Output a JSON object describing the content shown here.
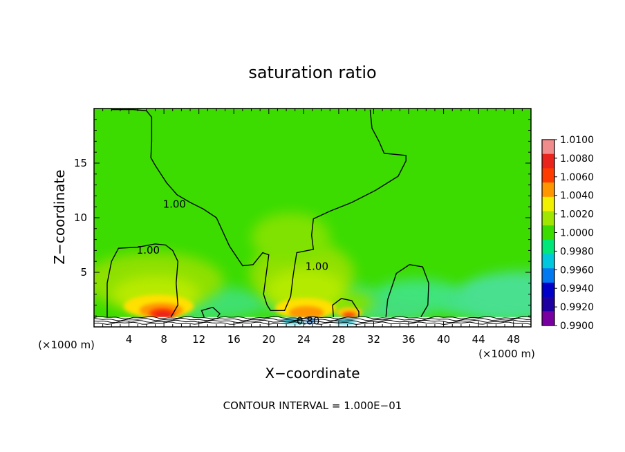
{
  "chart_data": {
    "type": "heatmap",
    "title": "saturation ratio",
    "xlabel": "X−coordinate",
    "ylabel": "Z−coordinate",
    "x_unit_left": "(×1000 m)",
    "x_unit_right": "(×1000 m)",
    "xlim": [
      0,
      50
    ],
    "ylim": [
      0,
      20
    ],
    "x_ticks": [
      4,
      8,
      12,
      16,
      20,
      24,
      28,
      32,
      36,
      40,
      44,
      48
    ],
    "x_tick_labels": [
      "4",
      "8",
      "12",
      "16",
      "20",
      "24",
      "28",
      "32",
      "36",
      "40",
      "44",
      "48"
    ],
    "y_ticks": [
      5,
      10,
      15
    ],
    "y_tick_labels": [
      "5",
      "10",
      "15"
    ],
    "footer": "CONTOUR INTERVAL = 1.000E−01",
    "colorbar": {
      "labels": [
        "1.0100",
        "1.0080",
        "1.0060",
        "1.0040",
        "1.0020",
        "1.0000",
        "0.9980",
        "0.9960",
        "0.9940",
        "0.9920",
        "0.9900"
      ],
      "colors": [
        "#f08c8c",
        "#e8241c",
        "#ff3c00",
        "#ff9600",
        "#f0f000",
        "#a0e600",
        "#3cdc00",
        "#00e678",
        "#00c8dc",
        "#0078f0",
        "#0000c8",
        "#1e00a0",
        "#7800a0"
      ]
    },
    "contour_labels": [
      {
        "text": "1.00",
        "x": 6.2,
        "z": 7.0
      },
      {
        "text": "1.00",
        "x": 9.2,
        "z": 11.2
      },
      {
        "text": "1.00",
        "x": 25.5,
        "z": 5.5
      },
      {
        "text": "0.80",
        "x": 24.5,
        "z": 0.5
      }
    ],
    "contours": [
      {
        "name": "1.00-left",
        "points": [
          [
            1.5,
            0.9
          ],
          [
            1.5,
            4
          ],
          [
            2,
            6
          ],
          [
            2.8,
            7.2
          ],
          [
            5,
            7.3
          ],
          [
            7,
            7.6
          ],
          [
            8.2,
            7.5
          ],
          [
            9,
            7
          ],
          [
            9.6,
            6
          ],
          [
            9.4,
            4
          ],
          [
            9.6,
            2
          ],
          [
            8.8,
            0.9
          ]
        ]
      },
      {
        "name": "1.00-main",
        "points": [
          [
            2,
            19.9
          ],
          [
            4.5,
            19.9
          ],
          [
            6,
            19.8
          ],
          [
            6.6,
            19.2
          ],
          [
            6.6,
            17
          ],
          [
            6.5,
            15.5
          ],
          [
            7,
            14.8
          ],
          [
            8.3,
            13.2
          ],
          [
            9.5,
            12.1
          ],
          [
            11,
            11.4
          ],
          [
            12.5,
            10.8
          ],
          [
            14,
            10
          ],
          [
            15.5,
            7.4
          ],
          [
            17,
            5.6
          ],
          [
            18.2,
            5.7
          ],
          [
            19.3,
            6.8
          ],
          [
            20,
            6.6
          ],
          [
            19.4,
            3
          ],
          [
            19.8,
            2
          ],
          [
            20.2,
            1.5
          ],
          [
            21.8,
            1.5
          ],
          [
            22.5,
            2.8
          ],
          [
            22.8,
            4.8
          ],
          [
            23.2,
            6.8
          ],
          [
            25.1,
            7.1
          ],
          [
            24.9,
            8.4
          ],
          [
            25.1,
            9.9
          ],
          [
            27,
            10.6
          ],
          [
            29.5,
            11.4
          ],
          [
            32.2,
            12.5
          ],
          [
            34.8,
            13.8
          ],
          [
            35.7,
            15.2
          ],
          [
            35.7,
            15.7
          ],
          [
            33.2,
            15.9
          ],
          [
            32.6,
            17
          ],
          [
            31.8,
            18.2
          ],
          [
            31.6,
            19.9
          ]
        ]
      },
      {
        "name": "1.00-bump-13",
        "points": [
          [
            12.6,
            0.9
          ],
          [
            12.3,
            1.5
          ],
          [
            13.6,
            1.8
          ],
          [
            14.4,
            1.2
          ],
          [
            14.1,
            0.9
          ]
        ]
      },
      {
        "name": "1.00-bump-29",
        "points": [
          [
            27.4,
            0.9
          ],
          [
            27.3,
            2
          ],
          [
            28.3,
            2.6
          ],
          [
            29.5,
            2.4
          ],
          [
            30.3,
            1.4
          ],
          [
            30.3,
            0.9
          ]
        ]
      },
      {
        "name": "1.00-right",
        "points": [
          [
            33.4,
            0.9
          ],
          [
            33.6,
            2.5
          ],
          [
            34.6,
            4.9
          ],
          [
            36.1,
            5.7
          ],
          [
            37.6,
            5.5
          ],
          [
            38.3,
            4
          ],
          [
            38.2,
            2
          ],
          [
            37.4,
            0.9
          ]
        ]
      }
    ]
  }
}
